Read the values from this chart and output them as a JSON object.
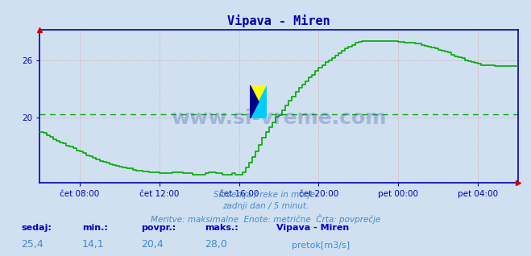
{
  "title": "Vipava - Miren",
  "bg_color": "#d0e0f0",
  "plot_bg_color": "#d0e0f0",
  "line_color": "#00aa00",
  "line_width": 1.2,
  "avg_line_color": "#00aa00",
  "avg_value": 20.4,
  "min_value": 14.1,
  "max_value": 28.0,
  "current_value": 25.4,
  "ylim": [
    13.2,
    29.2
  ],
  "yticks": [
    20,
    26
  ],
  "xlabel_color": "#4488cc",
  "ylabel_color": "#4488cc",
  "axis_color": "#0000bb",
  "grid_color": "#dd8888",
  "watermark": "www.si-vreme.com",
  "subtitle1": "Slovenija / reke in morje.",
  "subtitle2": "zadnji dan / 5 minut.",
  "subtitle3": "Meritve: maksimalne  Enote: metrične  Črta: povprečje",
  "legend_title": "Vipava - Miren",
  "legend_label": "pretok[m3/s]",
  "legend_color": "#00aa00",
  "footer_labels": [
    "sedaj:",
    "min.:",
    "povpr.:",
    "maks.:"
  ],
  "footer_values": [
    "25,4",
    "14,1",
    "20,4",
    "28,0"
  ],
  "footer_label_color": "#0000cc",
  "footer_value_color": "#4488cc",
  "xtick_labels": [
    "čet 08:00",
    "čet 12:00",
    "čet 16:00",
    "čet 20:00",
    "pet 00:00",
    "pet 04:00"
  ],
  "xtick_positions": [
    60,
    180,
    300,
    420,
    540,
    660
  ],
  "time_series_x": [
    0,
    5,
    10,
    15,
    20,
    25,
    30,
    35,
    40,
    45,
    50,
    55,
    60,
    65,
    70,
    75,
    80,
    85,
    90,
    95,
    100,
    105,
    110,
    115,
    120,
    125,
    130,
    135,
    140,
    145,
    150,
    155,
    160,
    165,
    170,
    175,
    180,
    185,
    190,
    195,
    200,
    205,
    210,
    215,
    220,
    225,
    230,
    235,
    240,
    245,
    250,
    255,
    260,
    265,
    270,
    275,
    280,
    285,
    290,
    295,
    300,
    305,
    310,
    315,
    320,
    325,
    330,
    335,
    340,
    345,
    350,
    355,
    360,
    365,
    370,
    375,
    380,
    385,
    390,
    395,
    400,
    405,
    410,
    415,
    420,
    425,
    430,
    435,
    440,
    445,
    450,
    455,
    460,
    465,
    470,
    475,
    480,
    485,
    490,
    495,
    500,
    505,
    510,
    515,
    520,
    525,
    530,
    535,
    540,
    545,
    550,
    555,
    560,
    565,
    570,
    575,
    580,
    585,
    590,
    595,
    600,
    605,
    610,
    615,
    620,
    625,
    630,
    635,
    640,
    645,
    650,
    655,
    660,
    665,
    670,
    675,
    680,
    685,
    690,
    695,
    700,
    705,
    710,
    715,
    720
  ],
  "time_series_y": [
    18.5,
    18.4,
    18.2,
    18.0,
    17.8,
    17.6,
    17.4,
    17.3,
    17.1,
    17.0,
    16.8,
    16.6,
    16.5,
    16.3,
    16.1,
    16.0,
    15.8,
    15.7,
    15.5,
    15.4,
    15.3,
    15.2,
    15.1,
    15.0,
    14.9,
    14.8,
    14.7,
    14.7,
    14.6,
    14.5,
    14.5,
    14.4,
    14.4,
    14.3,
    14.3,
    14.3,
    14.2,
    14.2,
    14.2,
    14.2,
    14.3,
    14.3,
    14.3,
    14.2,
    14.2,
    14.2,
    14.1,
    14.1,
    14.1,
    14.1,
    14.2,
    14.3,
    14.3,
    14.2,
    14.2,
    14.1,
    14.1,
    14.1,
    14.2,
    14.1,
    14.1,
    14.3,
    14.8,
    15.3,
    15.9,
    16.5,
    17.2,
    17.9,
    18.5,
    19.0,
    19.5,
    20.1,
    20.3,
    20.8,
    21.3,
    21.8,
    22.2,
    22.7,
    23.1,
    23.5,
    23.8,
    24.2,
    24.5,
    24.9,
    25.2,
    25.5,
    25.8,
    26.0,
    26.2,
    26.5,
    26.7,
    27.0,
    27.2,
    27.4,
    27.6,
    27.8,
    27.9,
    28.0,
    28.0,
    28.0,
    28.0,
    28.0,
    28.0,
    28.0,
    28.0,
    28.0,
    28.0,
    28.0,
    27.9,
    27.9,
    27.8,
    27.8,
    27.8,
    27.7,
    27.7,
    27.6,
    27.5,
    27.4,
    27.3,
    27.2,
    27.1,
    27.0,
    26.9,
    26.8,
    26.6,
    26.4,
    26.3,
    26.2,
    26.0,
    25.9,
    25.8,
    25.7,
    25.6,
    25.5,
    25.5,
    25.5,
    25.5,
    25.4,
    25.4,
    25.4,
    25.4,
    25.4,
    25.4,
    25.4,
    25.4
  ],
  "xmax": 720
}
